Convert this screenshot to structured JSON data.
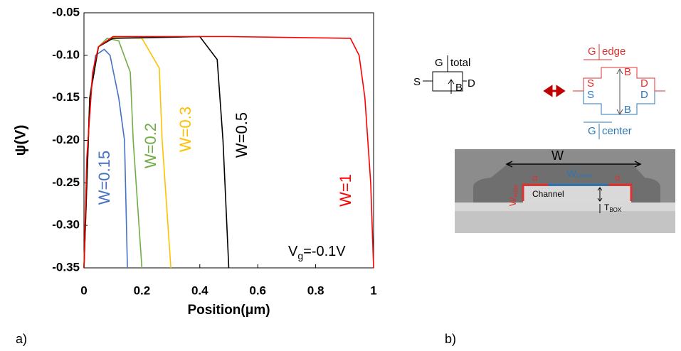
{
  "chart_data": {
    "type": "line",
    "xlabel": "Position(μm)",
    "ylabel": "ψ(V)",
    "annotation": {
      "main": "V",
      "sub": "g",
      "rest": "=-0.1V"
    },
    "xlim": [
      0,
      1
    ],
    "xticks": [
      0,
      0.2,
      0.4,
      0.6,
      0.8,
      1
    ],
    "ylim": [
      -0.35,
      -0.05
    ],
    "yticks": [
      -0.35,
      {
        "value": -0.3,
        "label": "-0.30"
      },
      -0.25,
      {
        "value": -0.2,
        "label": "-0.20"
      },
      -0.15,
      {
        "value": -0.1,
        "label": "-0.10"
      },
      -0.05
    ],
    "series": [
      {
        "name": "W=0.15",
        "color": "#4472c4",
        "x": [
          0,
          0.02,
          0.04,
          0.07,
          0.09,
          0.12,
          0.14,
          0.15
        ],
        "values": [
          -0.35,
          -0.15,
          -0.1,
          -0.093,
          -0.1,
          -0.15,
          -0.2,
          -0.35
        ]
      },
      {
        "name": "W=0.2",
        "color": "#70ad47",
        "x": [
          0,
          0.02,
          0.05,
          0.08,
          0.12,
          0.16,
          0.17,
          0.2
        ],
        "values": [
          -0.35,
          -0.15,
          -0.09,
          -0.08,
          -0.083,
          -0.12,
          -0.2,
          -0.35
        ]
      },
      {
        "name": "W=0.3",
        "color": "#ffc000",
        "x": [
          0,
          0.02,
          0.05,
          0.1,
          0.2,
          0.26,
          0.27,
          0.3
        ],
        "values": [
          -0.35,
          -0.15,
          -0.09,
          -0.079,
          -0.08,
          -0.115,
          -0.2,
          -0.35
        ]
      },
      {
        "name": "W=0.5",
        "color": "#000000",
        "x": [
          0,
          0.02,
          0.05,
          0.1,
          0.4,
          0.46,
          0.48,
          0.5
        ],
        "values": [
          -0.35,
          -0.15,
          -0.09,
          -0.08,
          -0.078,
          -0.105,
          -0.2,
          -0.35
        ]
      },
      {
        "name": "W=1",
        "color": "#ff0000",
        "x": [
          0,
          0.01,
          0.03,
          0.05,
          0.1,
          0.5,
          0.92,
          0.95,
          0.97,
          0.99,
          1
        ],
        "values": [
          -0.35,
          -0.22,
          -0.12,
          -0.09,
          -0.078,
          -0.078,
          -0.08,
          -0.1,
          -0.15,
          -0.25,
          -0.35
        ]
      }
    ]
  },
  "panel_labels": [
    "a)",
    "b)"
  ],
  "diagram": {
    "left": {
      "g": "G",
      "total": "total",
      "s": "S",
      "b": "B",
      "d": "D"
    },
    "right": {
      "g_edge": "G",
      "edge": "edge",
      "s_edge": "S",
      "s_center": "S",
      "b_edge": "B",
      "d_edge": "D",
      "d_center": "D",
      "b_center": "B",
      "g_center": "G",
      "center": "center"
    },
    "sem": {
      "w": "W",
      "w_center": "W",
      "w_center_sub": "center",
      "alpha": "α",
      "w_edge": "W",
      "w_edge_sub": "edge",
      "channel": "Channel",
      "t_box": "T",
      "t_box_sub": "BOX"
    }
  }
}
